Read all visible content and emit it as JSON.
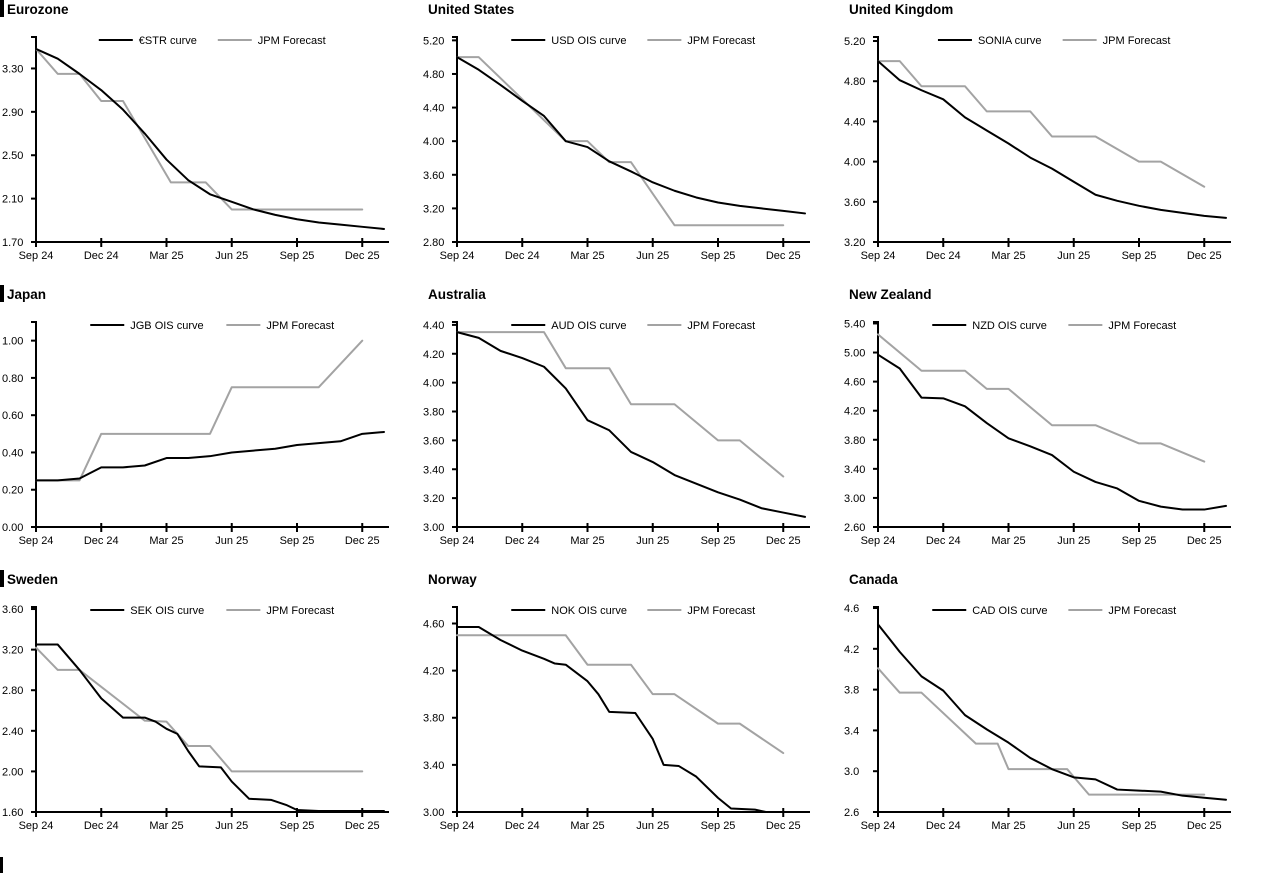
{
  "colors": {
    "curve": "#000000",
    "forecast": "#a3a3a3",
    "axis": "#000000"
  },
  "x_axis": {
    "labels": [
      "Sep 24",
      "Dec 24",
      "Mar 25",
      "Jun 25",
      "Sep 25",
      "Dec 25"
    ],
    "positions": [
      0,
      3,
      6,
      9,
      12,
      15
    ],
    "month_span": 16
  },
  "chart_data": [
    {
      "type": "line",
      "title": "Eurozone",
      "ylim": [
        1.7,
        3.59
      ],
      "yticks": [
        "1.70",
        "2.10",
        "2.50",
        "2.90",
        "3.30"
      ],
      "legend": [
        "€STR curve",
        "JPM Forecast"
      ],
      "series": [
        {
          "name": "€STR curve",
          "role": "curve",
          "x": [
            0,
            1,
            2,
            3,
            4,
            5,
            6,
            7,
            8,
            9,
            10,
            11,
            12,
            13,
            14,
            15,
            16
          ],
          "y": [
            3.48,
            3.39,
            3.25,
            3.1,
            2.92,
            2.7,
            2.46,
            2.27,
            2.14,
            2.07,
            2.0,
            1.95,
            1.91,
            1.88,
            1.86,
            1.84,
            1.82
          ]
        },
        {
          "name": "JPM Forecast",
          "role": "forecast",
          "x": [
            0,
            1,
            2,
            3,
            4,
            6.2,
            7.8,
            9,
            15
          ],
          "y": [
            3.48,
            3.25,
            3.25,
            3.0,
            3.0,
            2.25,
            2.25,
            2.0,
            2.0
          ]
        }
      ]
    },
    {
      "type": "line",
      "title": "United States",
      "ylim": [
        2.8,
        5.24
      ],
      "yticks": [
        "2.80",
        "3.20",
        "3.60",
        "4.00",
        "4.40",
        "4.80",
        "5.20"
      ],
      "legend": [
        "USD OIS curve",
        "JPM Forecast"
      ],
      "series": [
        {
          "name": "USD OIS curve",
          "role": "curve",
          "x": [
            0,
            1,
            2,
            3,
            4,
            5,
            6,
            7,
            8,
            9,
            10,
            11,
            12,
            13,
            14,
            15,
            16
          ],
          "y": [
            5.0,
            4.85,
            4.67,
            4.48,
            4.3,
            4.0,
            3.93,
            3.76,
            3.64,
            3.51,
            3.41,
            3.33,
            3.27,
            3.23,
            3.2,
            3.17,
            3.14
          ]
        },
        {
          "name": "JPM Forecast",
          "role": "forecast",
          "x": [
            0,
            1,
            3,
            5,
            6,
            7,
            8,
            10,
            15
          ],
          "y": [
            5.0,
            5.0,
            4.5,
            4.0,
            4.0,
            3.75,
            3.75,
            3.0,
            3.0
          ]
        }
      ]
    },
    {
      "type": "line",
      "title": "United Kingdom",
      "ylim": [
        3.2,
        5.24
      ],
      "yticks": [
        "3.20",
        "3.60",
        "4.00",
        "4.40",
        "4.80",
        "5.20"
      ],
      "legend": [
        "SONIA curve",
        "JPM Forecast"
      ],
      "series": [
        {
          "name": "SONIA curve",
          "role": "curve",
          "x": [
            0,
            1,
            2,
            3,
            4,
            5,
            6,
            7,
            8,
            9,
            10,
            11,
            12,
            13,
            14,
            15,
            16
          ],
          "y": [
            5.0,
            4.81,
            4.71,
            4.62,
            4.44,
            4.31,
            4.18,
            4.04,
            3.93,
            3.8,
            3.67,
            3.61,
            3.56,
            3.52,
            3.49,
            3.46,
            3.44
          ]
        },
        {
          "name": "JPM Forecast",
          "role": "forecast",
          "x": [
            0,
            1,
            2,
            4,
            5,
            7,
            8,
            10,
            12,
            13,
            15
          ],
          "y": [
            5.0,
            5.0,
            4.75,
            4.75,
            4.5,
            4.5,
            4.25,
            4.25,
            4.0,
            4.0,
            3.75
          ]
        }
      ]
    },
    {
      "type": "line",
      "title": "Japan",
      "ylim": [
        0.0,
        1.1
      ],
      "yticks": [
        "0.00",
        "0.20",
        "0.40",
        "0.60",
        "0.80",
        "1.00"
      ],
      "legend": [
        "JGB OIS curve",
        "JPM Forecast"
      ],
      "series": [
        {
          "name": "JGB OIS curve",
          "role": "curve",
          "x": [
            0,
            1,
            2,
            3,
            4,
            5,
            6,
            7,
            8,
            9,
            10,
            11,
            12,
            13,
            14,
            15,
            16
          ],
          "y": [
            0.25,
            0.25,
            0.26,
            0.32,
            0.32,
            0.33,
            0.37,
            0.37,
            0.38,
            0.4,
            0.41,
            0.42,
            0.44,
            0.45,
            0.46,
            0.5,
            0.51
          ]
        },
        {
          "name": "JPM Forecast",
          "role": "forecast",
          "x": [
            0,
            2,
            3,
            8,
            9,
            13,
            15
          ],
          "y": [
            0.25,
            0.25,
            0.5,
            0.5,
            0.75,
            0.75,
            1.0
          ]
        }
      ]
    },
    {
      "type": "line",
      "title": "Australia",
      "ylim": [
        3.0,
        4.42
      ],
      "yticks": [
        "3.00",
        "3.20",
        "3.40",
        "3.60",
        "3.80",
        "4.00",
        "4.20",
        "4.40"
      ],
      "legend": [
        "AUD OIS curve",
        "JPM Forecast"
      ],
      "series": [
        {
          "name": "AUD OIS curve",
          "role": "curve",
          "x": [
            0,
            1,
            2,
            3,
            4,
            5,
            6,
            7,
            8,
            9,
            10,
            11,
            12,
            13,
            14,
            15,
            16
          ],
          "y": [
            4.35,
            4.31,
            4.22,
            4.17,
            4.11,
            3.96,
            3.74,
            3.67,
            3.52,
            3.45,
            3.36,
            3.3,
            3.24,
            3.19,
            3.13,
            3.1,
            3.07
          ]
        },
        {
          "name": "JPM Forecast",
          "role": "forecast",
          "x": [
            0,
            4,
            5,
            7,
            8,
            10,
            12,
            13,
            15
          ],
          "y": [
            4.35,
            4.35,
            4.1,
            4.1,
            3.85,
            3.85,
            3.6,
            3.6,
            3.35
          ]
        }
      ]
    },
    {
      "type": "line",
      "title": "New Zealand",
      "ylim": [
        2.6,
        5.42
      ],
      "yticks": [
        "2.60",
        "3.00",
        "3.40",
        "3.80",
        "4.20",
        "4.60",
        "5.00",
        "5.40"
      ],
      "legend": [
        "NZD OIS curve",
        "JPM Forecast"
      ],
      "series": [
        {
          "name": "NZD OIS curve",
          "role": "curve",
          "x": [
            0,
            1,
            2,
            3,
            4,
            5,
            6,
            7,
            8,
            9,
            10,
            11,
            12,
            13,
            14,
            15,
            16
          ],
          "y": [
            4.97,
            4.78,
            4.38,
            4.37,
            4.26,
            4.03,
            3.82,
            3.71,
            3.59,
            3.36,
            3.22,
            3.13,
            2.96,
            2.88,
            2.84,
            2.84,
            2.89
          ]
        },
        {
          "name": "JPM Forecast",
          "role": "forecast",
          "x": [
            0,
            2,
            4,
            5,
            6,
            8,
            10,
            12,
            13,
            15
          ],
          "y": [
            5.25,
            4.75,
            4.75,
            4.5,
            4.5,
            4.0,
            4.0,
            3.75,
            3.75,
            3.5
          ]
        }
      ]
    },
    {
      "type": "line",
      "title": "Sweden",
      "ylim": [
        1.6,
        3.62
      ],
      "yticks": [
        "1.60",
        "2.00",
        "2.40",
        "2.80",
        "3.20",
        "3.60"
      ],
      "legend": [
        "SEK OIS curve",
        "JPM Forecast"
      ],
      "series": [
        {
          "name": "SEK OIS curve",
          "role": "curve",
          "x": [
            0,
            1,
            2,
            3,
            4,
            5,
            5.5,
            6,
            6.5,
            7,
            7.5,
            8.5,
            9,
            9.8,
            10.8,
            11.5,
            12,
            13,
            16
          ],
          "y": [
            3.25,
            3.25,
            3.0,
            2.72,
            2.53,
            2.53,
            2.49,
            2.42,
            2.37,
            2.2,
            2.05,
            2.04,
            1.9,
            1.73,
            1.72,
            1.67,
            1.62,
            1.61,
            1.61
          ]
        },
        {
          "name": "JPM Forecast",
          "role": "forecast",
          "x": [
            0,
            1,
            2,
            5,
            6,
            7,
            8,
            9,
            15
          ],
          "y": [
            3.22,
            3.0,
            3.0,
            2.5,
            2.49,
            2.25,
            2.25,
            2.0,
            2.0
          ]
        }
      ]
    },
    {
      "type": "line",
      "title": "Norway",
      "ylim": [
        3.0,
        4.74
      ],
      "yticks": [
        "3.00",
        "3.40",
        "3.80",
        "4.20",
        "4.60"
      ],
      "legend": [
        "NOK OIS curve",
        "JPM Forecast"
      ],
      "series": [
        {
          "name": "NOK OIS curve",
          "role": "curve",
          "x": [
            0,
            1,
            2,
            3,
            4,
            4.5,
            5,
            6,
            6.5,
            7,
            8.2,
            9,
            9.5,
            10.2,
            11,
            12,
            12.6,
            13.7,
            14.2
          ],
          "y": [
            4.57,
            4.57,
            4.46,
            4.37,
            4.3,
            4.26,
            4.25,
            4.11,
            4.0,
            3.85,
            3.84,
            3.62,
            3.4,
            3.39,
            3.3,
            3.12,
            3.03,
            3.02,
            3.0
          ]
        },
        {
          "name": "JPM Forecast",
          "role": "forecast",
          "x": [
            0,
            5,
            6,
            8,
            9,
            10,
            12,
            13,
            15
          ],
          "y": [
            4.5,
            4.5,
            4.25,
            4.25,
            4.0,
            4.0,
            3.75,
            3.75,
            3.5
          ]
        }
      ]
    },
    {
      "type": "line",
      "title": "Canada",
      "ylim": [
        2.6,
        4.61
      ],
      "yticks": [
        "2.6",
        "3.0",
        "3.4",
        "3.8",
        "4.2",
        "4.6"
      ],
      "legend": [
        "CAD OIS curve",
        "JPM Forecast"
      ],
      "series": [
        {
          "name": "CAD OIS curve",
          "role": "curve",
          "x": [
            0,
            1,
            2,
            3,
            4,
            5,
            6,
            7,
            8,
            9,
            10,
            11,
            12,
            13,
            14,
            15,
            16
          ],
          "y": [
            4.44,
            4.17,
            3.93,
            3.79,
            3.55,
            3.41,
            3.28,
            3.13,
            3.02,
            2.94,
            2.92,
            2.82,
            2.81,
            2.8,
            2.76,
            2.74,
            2.72
          ]
        },
        {
          "name": "JPM Forecast",
          "role": "forecast",
          "x": [
            0,
            1,
            2,
            4.5,
            5.5,
            6,
            8.7,
            9.7,
            15
          ],
          "y": [
            4.01,
            3.77,
            3.77,
            3.27,
            3.27,
            3.02,
            3.02,
            2.77,
            2.77
          ]
        }
      ]
    }
  ]
}
